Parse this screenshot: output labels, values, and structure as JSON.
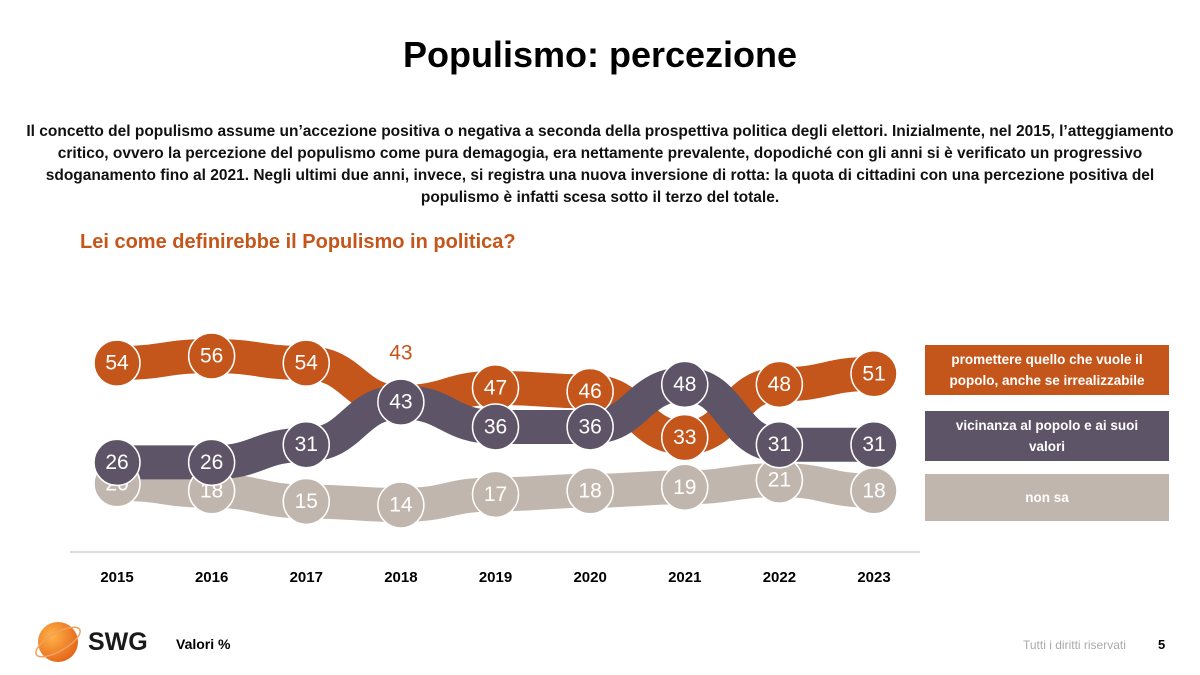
{
  "chart_data": {
    "type": "line",
    "title": "Populismo: percezione",
    "description": "Il concetto del populismo assume un’accezione positiva o negativa a seconda della prospettiva politica degli elettori. Inizialmente, nel 2015, l’atteggiamento critico, ovvero la percezione del populismo come pura demagogia, era nettamente prevalente, dopodiché con gli anni si è verificato un progressivo sdoganamento fino al 2021. Negli ultimi due anni, invece, si registra una nuova inversione di rotta: la quota di cittadini con una percezione positiva del populismo è infatti scesa sotto il terzo del totale.",
    "question": "Lei come definirebbe il Populismo in politica?",
    "x": [
      2015,
      2016,
      2017,
      2018,
      2019,
      2020,
      2021,
      2022,
      2023
    ],
    "series": [
      {
        "name": "non sa",
        "color": "#c1b6ad",
        "values": [
          20,
          18,
          15,
          14,
          17,
          18,
          19,
          21,
          18
        ]
      },
      {
        "name": "promettere quello che vuole il popolo, anche se irrealizzabile",
        "color": "#c5561b",
        "values": [
          54,
          56,
          54,
          43,
          47,
          46,
          33,
          48,
          51
        ]
      },
      {
        "name": "vicinanza al popolo e ai suoi valori",
        "color": "#5d5567",
        "values": [
          26,
          26,
          31,
          43,
          36,
          36,
          48,
          31,
          31
        ]
      }
    ],
    "legend": "right"
  },
  "footer": {
    "brand": "SWG",
    "note": "Valori %",
    "rights": "Tutti i diritti riservati",
    "page": 5
  }
}
